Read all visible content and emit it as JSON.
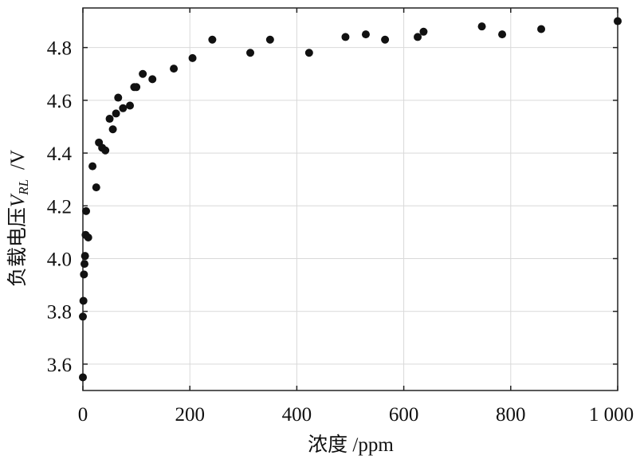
{
  "chart_data": {
    "type": "scatter",
    "title": "",
    "xlabel": "浓度 /ppm",
    "ylabel_main": "负载电压",
    "ylabel_sub": "RL",
    "ylabel_unit": "/V",
    "xlim": [
      0,
      1000
    ],
    "ylim": [
      3.5,
      4.95
    ],
    "xticks": [
      0,
      200,
      400,
      600,
      800,
      1000
    ],
    "xtick_labels": [
      "0",
      "200",
      "400",
      "600",
      "800",
      "1 000"
    ],
    "yticks": [
      3.6,
      3.8,
      4.0,
      4.2,
      4.4,
      4.6,
      4.8
    ],
    "ytick_labels": [
      "3.6",
      "3.8",
      "4.0",
      "4.2",
      "4.4",
      "4.6",
      "4.8"
    ],
    "grid": true,
    "legend": false,
    "marker_color": "#111111",
    "series": [
      {
        "points": [
          {
            "x": 0,
            "y": 3.55
          },
          {
            "x": 0,
            "y": 3.78
          },
          {
            "x": 1,
            "y": 3.84
          },
          {
            "x": 2,
            "y": 3.94
          },
          {
            "x": 3,
            "y": 3.98
          },
          {
            "x": 4,
            "y": 4.01
          },
          {
            "x": 5,
            "y": 4.09
          },
          {
            "x": 6,
            "y": 4.18
          },
          {
            "x": 10,
            "y": 4.08
          },
          {
            "x": 18,
            "y": 4.35
          },
          {
            "x": 25,
            "y": 4.27
          },
          {
            "x": 30,
            "y": 4.44
          },
          {
            "x": 36,
            "y": 4.42
          },
          {
            "x": 42,
            "y": 4.41
          },
          {
            "x": 50,
            "y": 4.53
          },
          {
            "x": 56,
            "y": 4.49
          },
          {
            "x": 62,
            "y": 4.55
          },
          {
            "x": 66,
            "y": 4.61
          },
          {
            "x": 75,
            "y": 4.57
          },
          {
            "x": 88,
            "y": 4.58
          },
          {
            "x": 96,
            "y": 4.65
          },
          {
            "x": 100,
            "y": 4.65
          },
          {
            "x": 112,
            "y": 4.7
          },
          {
            "x": 130,
            "y": 4.68
          },
          {
            "x": 170,
            "y": 4.72
          },
          {
            "x": 205,
            "y": 4.76
          },
          {
            "x": 242,
            "y": 4.83
          },
          {
            "x": 313,
            "y": 4.78
          },
          {
            "x": 350,
            "y": 4.83
          },
          {
            "x": 423,
            "y": 4.78
          },
          {
            "x": 491,
            "y": 4.84
          },
          {
            "x": 529,
            "y": 4.85
          },
          {
            "x": 565,
            "y": 4.83
          },
          {
            "x": 626,
            "y": 4.84
          },
          {
            "x": 637,
            "y": 4.86
          },
          {
            "x": 746,
            "y": 4.88
          },
          {
            "x": 784,
            "y": 4.85
          },
          {
            "x": 857,
            "y": 4.87
          },
          {
            "x": 1000,
            "y": 4.9
          }
        ]
      }
    ]
  }
}
